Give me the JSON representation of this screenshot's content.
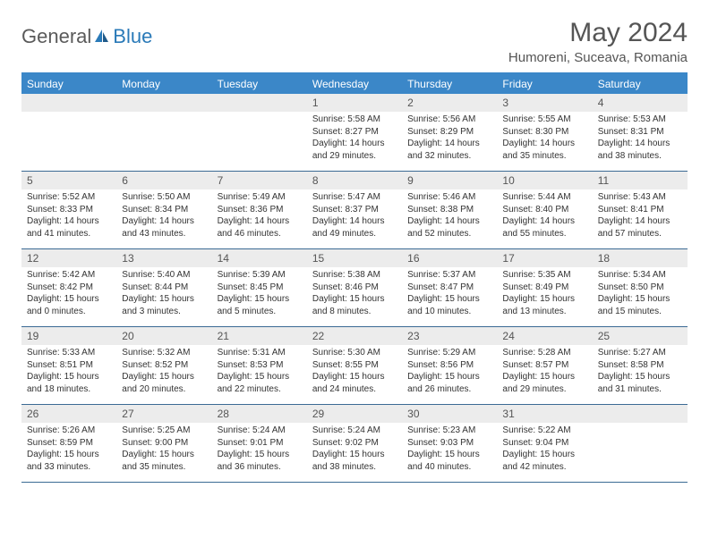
{
  "logo": {
    "general": "General",
    "blue": "Blue"
  },
  "title": "May 2024",
  "location": "Humoreni, Suceava, Romania",
  "dayHeaders": [
    "Sunday",
    "Monday",
    "Tuesday",
    "Wednesday",
    "Thursday",
    "Friday",
    "Saturday"
  ],
  "colors": {
    "headerBg": "#3b87c8",
    "dayNumBg": "#ececec",
    "weekBorder": "#3b6a94",
    "textGray": "#555555"
  },
  "weeks": [
    [
      {
        "day": "",
        "sunrise": "",
        "sunset": "",
        "daylight1": "",
        "daylight2": ""
      },
      {
        "day": "",
        "sunrise": "",
        "sunset": "",
        "daylight1": "",
        "daylight2": ""
      },
      {
        "day": "",
        "sunrise": "",
        "sunset": "",
        "daylight1": "",
        "daylight2": ""
      },
      {
        "day": "1",
        "sunrise": "Sunrise: 5:58 AM",
        "sunset": "Sunset: 8:27 PM",
        "daylight1": "Daylight: 14 hours",
        "daylight2": "and 29 minutes."
      },
      {
        "day": "2",
        "sunrise": "Sunrise: 5:56 AM",
        "sunset": "Sunset: 8:29 PM",
        "daylight1": "Daylight: 14 hours",
        "daylight2": "and 32 minutes."
      },
      {
        "day": "3",
        "sunrise": "Sunrise: 5:55 AM",
        "sunset": "Sunset: 8:30 PM",
        "daylight1": "Daylight: 14 hours",
        "daylight2": "and 35 minutes."
      },
      {
        "day": "4",
        "sunrise": "Sunrise: 5:53 AM",
        "sunset": "Sunset: 8:31 PM",
        "daylight1": "Daylight: 14 hours",
        "daylight2": "and 38 minutes."
      }
    ],
    [
      {
        "day": "5",
        "sunrise": "Sunrise: 5:52 AM",
        "sunset": "Sunset: 8:33 PM",
        "daylight1": "Daylight: 14 hours",
        "daylight2": "and 41 minutes."
      },
      {
        "day": "6",
        "sunrise": "Sunrise: 5:50 AM",
        "sunset": "Sunset: 8:34 PM",
        "daylight1": "Daylight: 14 hours",
        "daylight2": "and 43 minutes."
      },
      {
        "day": "7",
        "sunrise": "Sunrise: 5:49 AM",
        "sunset": "Sunset: 8:36 PM",
        "daylight1": "Daylight: 14 hours",
        "daylight2": "and 46 minutes."
      },
      {
        "day": "8",
        "sunrise": "Sunrise: 5:47 AM",
        "sunset": "Sunset: 8:37 PM",
        "daylight1": "Daylight: 14 hours",
        "daylight2": "and 49 minutes."
      },
      {
        "day": "9",
        "sunrise": "Sunrise: 5:46 AM",
        "sunset": "Sunset: 8:38 PM",
        "daylight1": "Daylight: 14 hours",
        "daylight2": "and 52 minutes."
      },
      {
        "day": "10",
        "sunrise": "Sunrise: 5:44 AM",
        "sunset": "Sunset: 8:40 PM",
        "daylight1": "Daylight: 14 hours",
        "daylight2": "and 55 minutes."
      },
      {
        "day": "11",
        "sunrise": "Sunrise: 5:43 AM",
        "sunset": "Sunset: 8:41 PM",
        "daylight1": "Daylight: 14 hours",
        "daylight2": "and 57 minutes."
      }
    ],
    [
      {
        "day": "12",
        "sunrise": "Sunrise: 5:42 AM",
        "sunset": "Sunset: 8:42 PM",
        "daylight1": "Daylight: 15 hours",
        "daylight2": "and 0 minutes."
      },
      {
        "day": "13",
        "sunrise": "Sunrise: 5:40 AM",
        "sunset": "Sunset: 8:44 PM",
        "daylight1": "Daylight: 15 hours",
        "daylight2": "and 3 minutes."
      },
      {
        "day": "14",
        "sunrise": "Sunrise: 5:39 AM",
        "sunset": "Sunset: 8:45 PM",
        "daylight1": "Daylight: 15 hours",
        "daylight2": "and 5 minutes."
      },
      {
        "day": "15",
        "sunrise": "Sunrise: 5:38 AM",
        "sunset": "Sunset: 8:46 PM",
        "daylight1": "Daylight: 15 hours",
        "daylight2": "and 8 minutes."
      },
      {
        "day": "16",
        "sunrise": "Sunrise: 5:37 AM",
        "sunset": "Sunset: 8:47 PM",
        "daylight1": "Daylight: 15 hours",
        "daylight2": "and 10 minutes."
      },
      {
        "day": "17",
        "sunrise": "Sunrise: 5:35 AM",
        "sunset": "Sunset: 8:49 PM",
        "daylight1": "Daylight: 15 hours",
        "daylight2": "and 13 minutes."
      },
      {
        "day": "18",
        "sunrise": "Sunrise: 5:34 AM",
        "sunset": "Sunset: 8:50 PM",
        "daylight1": "Daylight: 15 hours",
        "daylight2": "and 15 minutes."
      }
    ],
    [
      {
        "day": "19",
        "sunrise": "Sunrise: 5:33 AM",
        "sunset": "Sunset: 8:51 PM",
        "daylight1": "Daylight: 15 hours",
        "daylight2": "and 18 minutes."
      },
      {
        "day": "20",
        "sunrise": "Sunrise: 5:32 AM",
        "sunset": "Sunset: 8:52 PM",
        "daylight1": "Daylight: 15 hours",
        "daylight2": "and 20 minutes."
      },
      {
        "day": "21",
        "sunrise": "Sunrise: 5:31 AM",
        "sunset": "Sunset: 8:53 PM",
        "daylight1": "Daylight: 15 hours",
        "daylight2": "and 22 minutes."
      },
      {
        "day": "22",
        "sunrise": "Sunrise: 5:30 AM",
        "sunset": "Sunset: 8:55 PM",
        "daylight1": "Daylight: 15 hours",
        "daylight2": "and 24 minutes."
      },
      {
        "day": "23",
        "sunrise": "Sunrise: 5:29 AM",
        "sunset": "Sunset: 8:56 PM",
        "daylight1": "Daylight: 15 hours",
        "daylight2": "and 26 minutes."
      },
      {
        "day": "24",
        "sunrise": "Sunrise: 5:28 AM",
        "sunset": "Sunset: 8:57 PM",
        "daylight1": "Daylight: 15 hours",
        "daylight2": "and 29 minutes."
      },
      {
        "day": "25",
        "sunrise": "Sunrise: 5:27 AM",
        "sunset": "Sunset: 8:58 PM",
        "daylight1": "Daylight: 15 hours",
        "daylight2": "and 31 minutes."
      }
    ],
    [
      {
        "day": "26",
        "sunrise": "Sunrise: 5:26 AM",
        "sunset": "Sunset: 8:59 PM",
        "daylight1": "Daylight: 15 hours",
        "daylight2": "and 33 minutes."
      },
      {
        "day": "27",
        "sunrise": "Sunrise: 5:25 AM",
        "sunset": "Sunset: 9:00 PM",
        "daylight1": "Daylight: 15 hours",
        "daylight2": "and 35 minutes."
      },
      {
        "day": "28",
        "sunrise": "Sunrise: 5:24 AM",
        "sunset": "Sunset: 9:01 PM",
        "daylight1": "Daylight: 15 hours",
        "daylight2": "and 36 minutes."
      },
      {
        "day": "29",
        "sunrise": "Sunrise: 5:24 AM",
        "sunset": "Sunset: 9:02 PM",
        "daylight1": "Daylight: 15 hours",
        "daylight2": "and 38 minutes."
      },
      {
        "day": "30",
        "sunrise": "Sunrise: 5:23 AM",
        "sunset": "Sunset: 9:03 PM",
        "daylight1": "Daylight: 15 hours",
        "daylight2": "and 40 minutes."
      },
      {
        "day": "31",
        "sunrise": "Sunrise: 5:22 AM",
        "sunset": "Sunset: 9:04 PM",
        "daylight1": "Daylight: 15 hours",
        "daylight2": "and 42 minutes."
      },
      {
        "day": "",
        "sunrise": "",
        "sunset": "",
        "daylight1": "",
        "daylight2": ""
      }
    ]
  ]
}
